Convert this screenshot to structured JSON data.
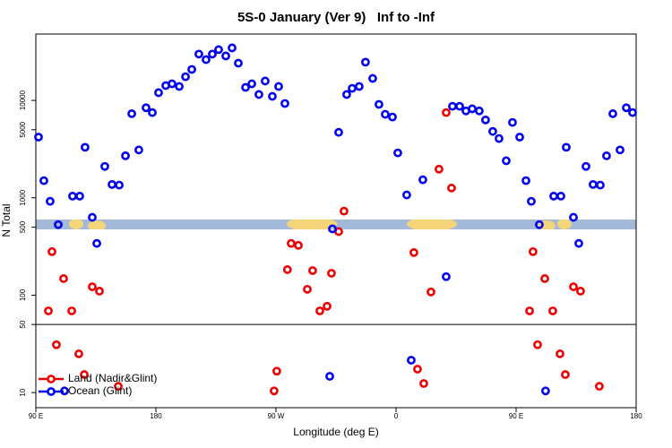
{
  "chart_data": {
    "type": "scatter",
    "title": "5S-0 January (Ver 9)   Inf to -Inf",
    "xlabel": "Longitude (deg E)",
    "ylabel": "N Total",
    "xlim": [
      90,
      540
    ],
    "xticks": [
      {
        "value": 90,
        "label": "90 E"
      },
      {
        "value": 180,
        "label": "180"
      },
      {
        "value": 270,
        "label": "90 W"
      },
      {
        "value": 360,
        "label": "0"
      },
      {
        "value": 450,
        "label": "90 E"
      },
      {
        "value": 540,
        "label": "180"
      }
    ],
    "ylim": [
      7,
      48000
    ],
    "ylog": true,
    "yticks": [
      10,
      50,
      100,
      500,
      1000,
      5000,
      10000
    ],
    "hline": 50,
    "legend": "bottomleft",
    "series": [
      {
        "name": "Land (Nadir&Glint)",
        "color": "#ee0000",
        "x": [
          99.4,
          102.1,
          105.4,
          110.8,
          116.9,
          122.2,
          126.3,
          132.3,
          137.7,
          151.8,
          268.6,
          270.6,
          278.6,
          281.4,
          286.8,
          293.5,
          297.5,
          302.9,
          308.3,
          311.6,
          317.0,
          321.0,
          373.4,
          376.1,
          380.8,
          386.2,
          392.2,
          397.6,
          401.6,
          460.1,
          462.7,
          466.1,
          471.5,
          477.5,
          482.9,
          486.9,
          493.0,
          498.3,
          512.4
        ],
        "values": [
          69,
          280,
          31,
          148,
          69,
          25,
          15.3,
          122,
          110,
          11.6,
          10.4,
          16.6,
          183,
          340,
          325,
          115,
          179,
          69,
          77,
          168,
          450,
          730,
          274,
          17.4,
          12.4,
          108,
          1970,
          7500,
          1260,
          69,
          280,
          31,
          148,
          69,
          25,
          15.3,
          122,
          110,
          11.6
        ]
      },
      {
        "name": "Ocean (Glint)",
        "color": "#0000ee",
        "x": [
          92.0,
          96.0,
          100.7,
          106.8,
          111.5,
          117.5,
          122.9,
          126.9,
          132.3,
          135.7,
          141.7,
          147.1,
          152.5,
          157.2,
          161.9,
          167.2,
          172.6,
          177.3,
          182.0,
          187.4,
          192.1,
          197.5,
          202.2,
          206.9,
          212.2,
          217.6,
          222.3,
          227.0,
          232.4,
          237.1,
          241.8,
          247.2,
          251.9,
          257.2,
          261.9,
          267.3,
          272.0,
          276.7,
          310.3,
          312.3,
          317.0,
          323.0,
          327.1,
          332.4,
          337.1,
          342.5,
          347.2,
          351.9,
          357.3,
          361.3,
          368.0,
          371.4,
          380.1,
          397.6,
          402.3,
          407.7,
          412.4,
          417.1,
          422.4,
          427.1,
          432.5,
          437.2,
          442.6,
          447.3,
          452.7,
          457.4,
          461.4,
          467.4,
          472.1,
          478.2,
          483.6,
          487.6,
          493.0,
          497.0,
          502.4,
          507.7,
          513.1,
          517.8,
          522.5,
          527.9,
          532.6,
          537.3
        ],
        "values": [
          4200,
          1500,
          920,
          530,
          10.4,
          1040,
          1040,
          3300,
          630,
          340,
          2100,
          1370,
          1350,
          2700,
          7300,
          3100,
          8400,
          7500,
          12000,
          14200,
          14800,
          13900,
          17500,
          20800,
          29900,
          26200,
          29900,
          33200,
          28600,
          34600,
          24100,
          13600,
          14800,
          11500,
          15800,
          11000,
          13900,
          9300,
          14.7,
          480,
          4700,
          11500,
          13300,
          13900,
          24700,
          16800,
          9100,
          7200,
          6750,
          2890,
          1070,
          21.5,
          1530,
          155,
          8700,
          8700,
          7800,
          8200,
          7800,
          6300,
          4800,
          4060,
          2400,
          5940,
          4200,
          1500,
          920,
          530,
          10.4,
          1040,
          1040,
          3300,
          630,
          340,
          2100,
          1370,
          1350,
          2700,
          7300,
          3100,
          8400,
          7500
        ]
      }
    ]
  }
}
